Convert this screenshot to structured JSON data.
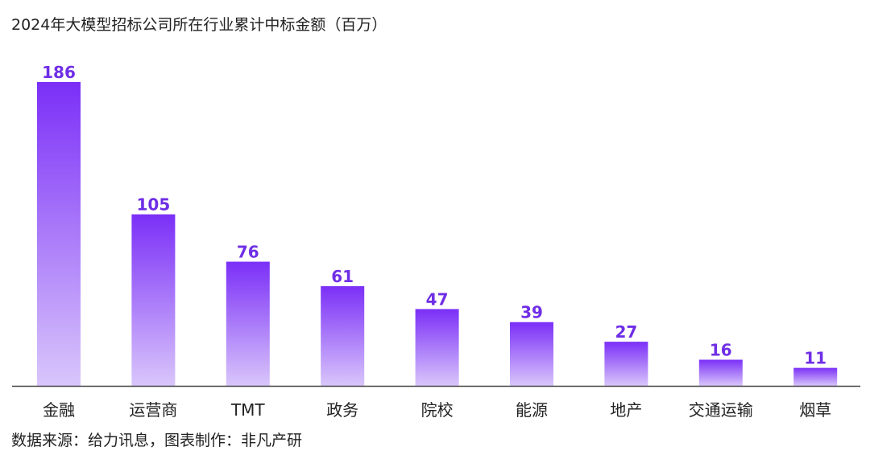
{
  "title": "2024年大模型招标公司所在行业累计中标金额（百万）",
  "source": "数据来源：给力讯息，图表制作：非凡产研",
  "colors": {
    "bar_top": "#7b2ff7",
    "bar_bottom": "#d9c6fb",
    "value_text": "#6f2ee6",
    "axis": "#444444"
  },
  "chart_data": {
    "type": "bar",
    "title": "2024年大模型招标公司所在行业累计中标金额（百万）",
    "categories": [
      "金融",
      "运营商",
      "TMT",
      "政务",
      "院校",
      "能源",
      "地产",
      "交通运输",
      "烟草"
    ],
    "values": [
      186,
      105,
      76,
      61,
      47,
      39,
      27,
      16,
      11
    ],
    "xlabel": "",
    "ylabel": "",
    "ylim": [
      0,
      186
    ],
    "grid": false,
    "data_labels": true
  }
}
